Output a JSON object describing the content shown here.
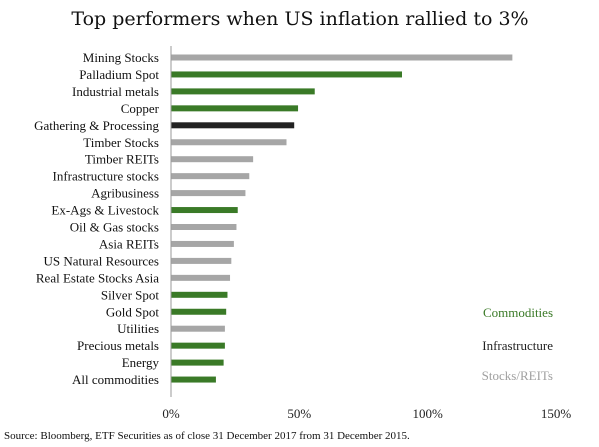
{
  "chart_data": {
    "type": "bar",
    "orientation": "horizontal",
    "title": "Top performers when US inflation rallied to 3%",
    "categories": [
      "Mining Stocks",
      "Palladium Spot",
      "Industrial metals",
      "Copper",
      "Gathering & Processing",
      "Timber Stocks",
      "Timber REITs",
      "Infrastructure stocks",
      "Agribusiness",
      "Ex-Ags & Livestock",
      "Oil & Gas stocks",
      "Asia REITs",
      "US Natural Resources",
      "Real Estate Stocks Asia",
      "Silver Spot",
      "Gold Spot",
      "Utilities",
      "Precious metals",
      "Energy",
      "All commodities"
    ],
    "values": [
      133,
      90,
      56,
      49.5,
      48,
      45,
      32,
      30.5,
      29,
      26,
      25.5,
      24.5,
      23.5,
      23,
      22,
      21.5,
      21,
      21,
      20.5,
      17.5
    ],
    "groups": [
      "Stocks/REITs",
      "Commodities",
      "Commodities",
      "Commodities",
      "Infrastructure",
      "Stocks/REITs",
      "Stocks/REITs",
      "Stocks/REITs",
      "Stocks/REITs",
      "Commodities",
      "Stocks/REITs",
      "Stocks/REITs",
      "Stocks/REITs",
      "Stocks/REITs",
      "Commodities",
      "Commodities",
      "Stocks/REITs",
      "Commodities",
      "Commodities",
      "Commodities"
    ],
    "legend": [
      {
        "name": "Commodities",
        "color": "#3a7a27"
      },
      {
        "name": "Infrastructure",
        "color": "#222222"
      },
      {
        "name": "Stocks/REITs",
        "color": "#a6a6a6"
      }
    ],
    "legend_placement": "bottom-right",
    "xlim": [
      0,
      150
    ],
    "x_ticks": [
      0,
      50,
      100,
      150
    ],
    "x_tick_labels": [
      "0%",
      "50%",
      "100%",
      "150%"
    ],
    "grid": false
  },
  "source": "Source: Bloomberg, ETF Securities as of close 31 December 2017 from 31 December 2015."
}
